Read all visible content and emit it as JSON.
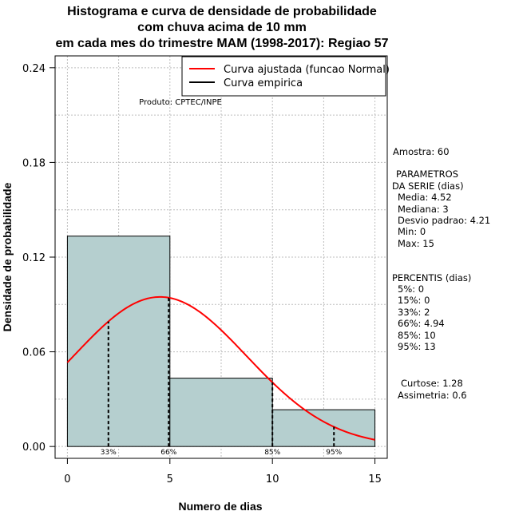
{
  "title_lines": [
    "Histograma e curva de densidade de probabilidade",
    "com chuva acima de 10 mm",
    "em cada mes do trimestre MAM (1998-2017): Regiao 57"
  ],
  "product_label": "Produto: CPTEC/INPE",
  "stats": {
    "amostra": "Amostra: 60",
    "param_title_1": "PARAMETROS",
    "param_title_2": "DA SERIE (dias)",
    "media": "Media: 4.52",
    "mediana": "Mediana: 3",
    "desvio": "Desvio padrao: 4.21",
    "min": "Min: 0",
    "max": "Max: 15",
    "perc_title": "PERCENTIS (dias)",
    "p5": "5%: 0",
    "p15": "15%: 0",
    "p33": "33%: 2",
    "p66": "66%: 4.94",
    "p85": "85%: 10",
    "p95": "95%: 13",
    "curtose": "Curtose: 1.28",
    "assimetria": "Assimetria: 0.6"
  },
  "chart_data": {
    "type": "bar",
    "xlabel": "Numero de dias",
    "ylabel": "Densidade de probabilidade",
    "xlim": [
      -0.6,
      15.6
    ],
    "ylim": [
      -0.0075,
      0.2475
    ],
    "x_ticks": [
      0,
      5,
      10,
      15
    ],
    "y_ticks": [
      0.0,
      0.06,
      0.12,
      0.18,
      0.24
    ],
    "y_tick_labels": [
      "0.00",
      "0.06",
      "0.12",
      "0.18",
      "0.24"
    ],
    "grid": true,
    "bins": [
      {
        "from": 0,
        "to": 5,
        "density": 0.1333
      },
      {
        "from": 5,
        "to": 10,
        "density": 0.0433
      },
      {
        "from": 10,
        "to": 15,
        "density": 0.0233
      }
    ],
    "fitted_curve": {
      "name": "Curva ajustada (funcao Normal)",
      "mean": 4.52,
      "sd": 4.21,
      "color": "#ff0000"
    },
    "empirical_curve": {
      "name": "Curva empirica",
      "color": "#000000"
    },
    "percentile_lines": [
      {
        "x": 2,
        "label": "33%"
      },
      {
        "x": 4.94,
        "label": "66%"
      },
      {
        "x": 10,
        "label": "85%"
      },
      {
        "x": 13,
        "label": "95%"
      }
    ],
    "bar_fill": "#b5cfcf",
    "legend_position": "top-right"
  }
}
